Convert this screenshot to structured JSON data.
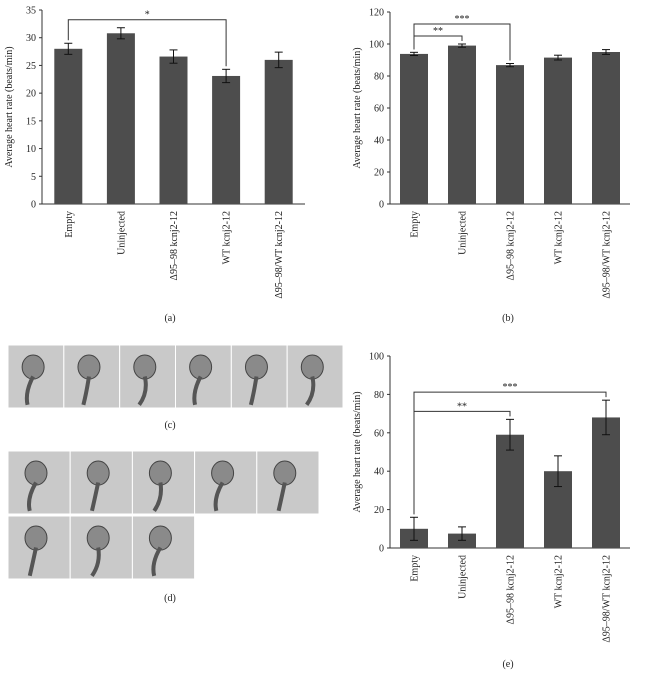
{
  "chart_data": [
    {
      "type": "bar",
      "caption": "(a)",
      "ylabel": "Average heart rate (beats/min)",
      "categories": [
        "Empty",
        "Uninjected",
        "Δ95–98 kcnj2-12",
        "WT kcnj2-12",
        "Δ95–98/WT kcnj2-12"
      ],
      "values": [
        28,
        30.8,
        26.6,
        23.1,
        26
      ],
      "errors": [
        1,
        1,
        1.2,
        1.2,
        1.4
      ],
      "color": "#4d4d4d",
      "ylim": [
        0,
        35
      ],
      "yticks": [
        0,
        5,
        10,
        15,
        20,
        25,
        30,
        35
      ],
      "annotations": [
        {
          "text": "*",
          "between": [
            "Empty",
            "WT kcnj2-12"
          ]
        }
      ]
    },
    {
      "type": "bar",
      "caption": "(b)",
      "ylabel": "Average heart rate (beats/min)",
      "categories": [
        "Empty",
        "Uninjected",
        "Δ95–98 kcnj2-12",
        "WT kcnj2-12",
        "Δ95–98/WT kcnj2-12"
      ],
      "values": [
        93.8,
        99,
        86.8,
        91.5,
        95
      ],
      "errors": [
        1,
        1,
        1,
        1.5,
        1.5
      ],
      "color": "#4d4d4d",
      "ylim": [
        0,
        120
      ],
      "yticks": [
        0,
        20,
        40,
        60,
        80,
        100,
        120
      ],
      "annotations": [
        {
          "text": "**",
          "between": [
            "Empty",
            "Uninjected"
          ]
        },
        {
          "text": "***",
          "between": [
            "Empty",
            "Δ95–98 kcnj2-12"
          ]
        }
      ]
    },
    {
      "type": "bar",
      "caption": "(e)",
      "ylabel": "Average heart rate (beats/min)",
      "categories": [
        "Empty",
        "Uninjected",
        "Δ95–98 kcnj2-12",
        "WT kcnj2-12",
        "Δ95–98/WT kcnj2-12"
      ],
      "values": [
        10,
        7.5,
        59,
        40,
        68
      ],
      "errors": [
        6,
        3.5,
        8,
        8,
        9
      ],
      "color": "#4d4d4d",
      "ylim": [
        0,
        100
      ],
      "yticks": [
        0,
        20,
        40,
        60,
        80,
        100
      ],
      "annotations": [
        {
          "text": "**",
          "between": [
            "Empty",
            "Δ95–98 kcnj2-12"
          ]
        },
        {
          "text": "***",
          "between": [
            "Empty",
            "Δ95–98/WT kcnj2-12"
          ]
        }
      ]
    }
  ],
  "images": [
    {
      "caption": "(c)"
    },
    {
      "caption": "(d)"
    }
  ]
}
